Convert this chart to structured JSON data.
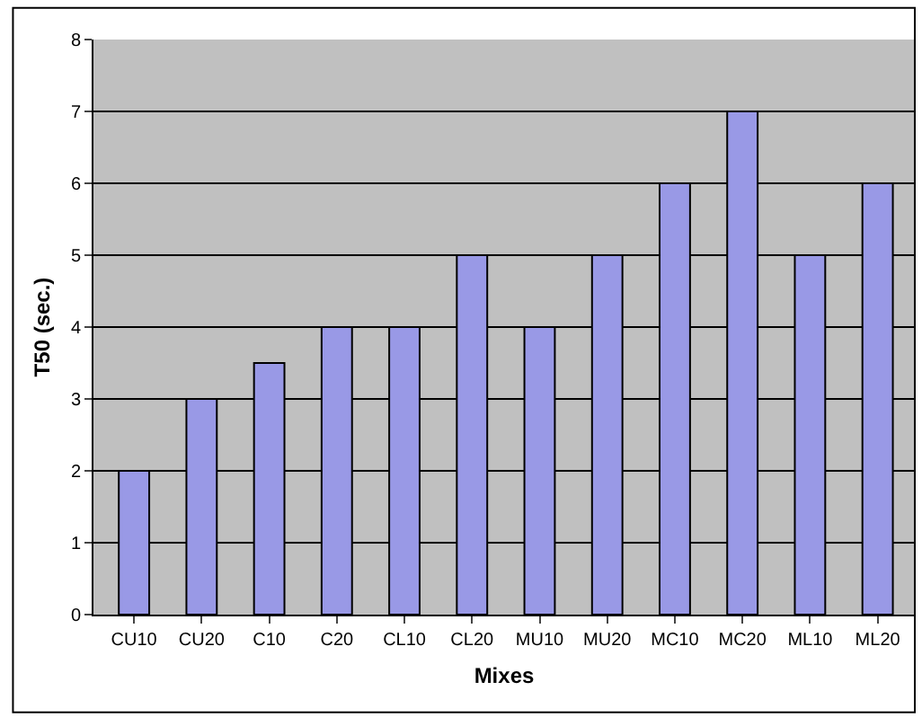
{
  "chart_data": {
    "type": "bar",
    "xlabel": "Mixes",
    "ylabel": "T50 (sec.)",
    "categories": [
      "CU10",
      "CU20",
      "C10",
      "C20",
      "CL10",
      "CL20",
      "MU10",
      "MU20",
      "MC10",
      "MC20",
      "ML10",
      "ML20"
    ],
    "values": [
      2,
      3,
      3.5,
      4,
      4,
      5,
      4,
      5,
      6,
      7,
      5,
      6
    ],
    "color": "#9999e6",
    "ylim": [
      0,
      8
    ],
    "yticks": [
      0,
      1,
      2,
      3,
      4,
      5,
      6,
      7,
      8
    ],
    "grid": "y"
  }
}
